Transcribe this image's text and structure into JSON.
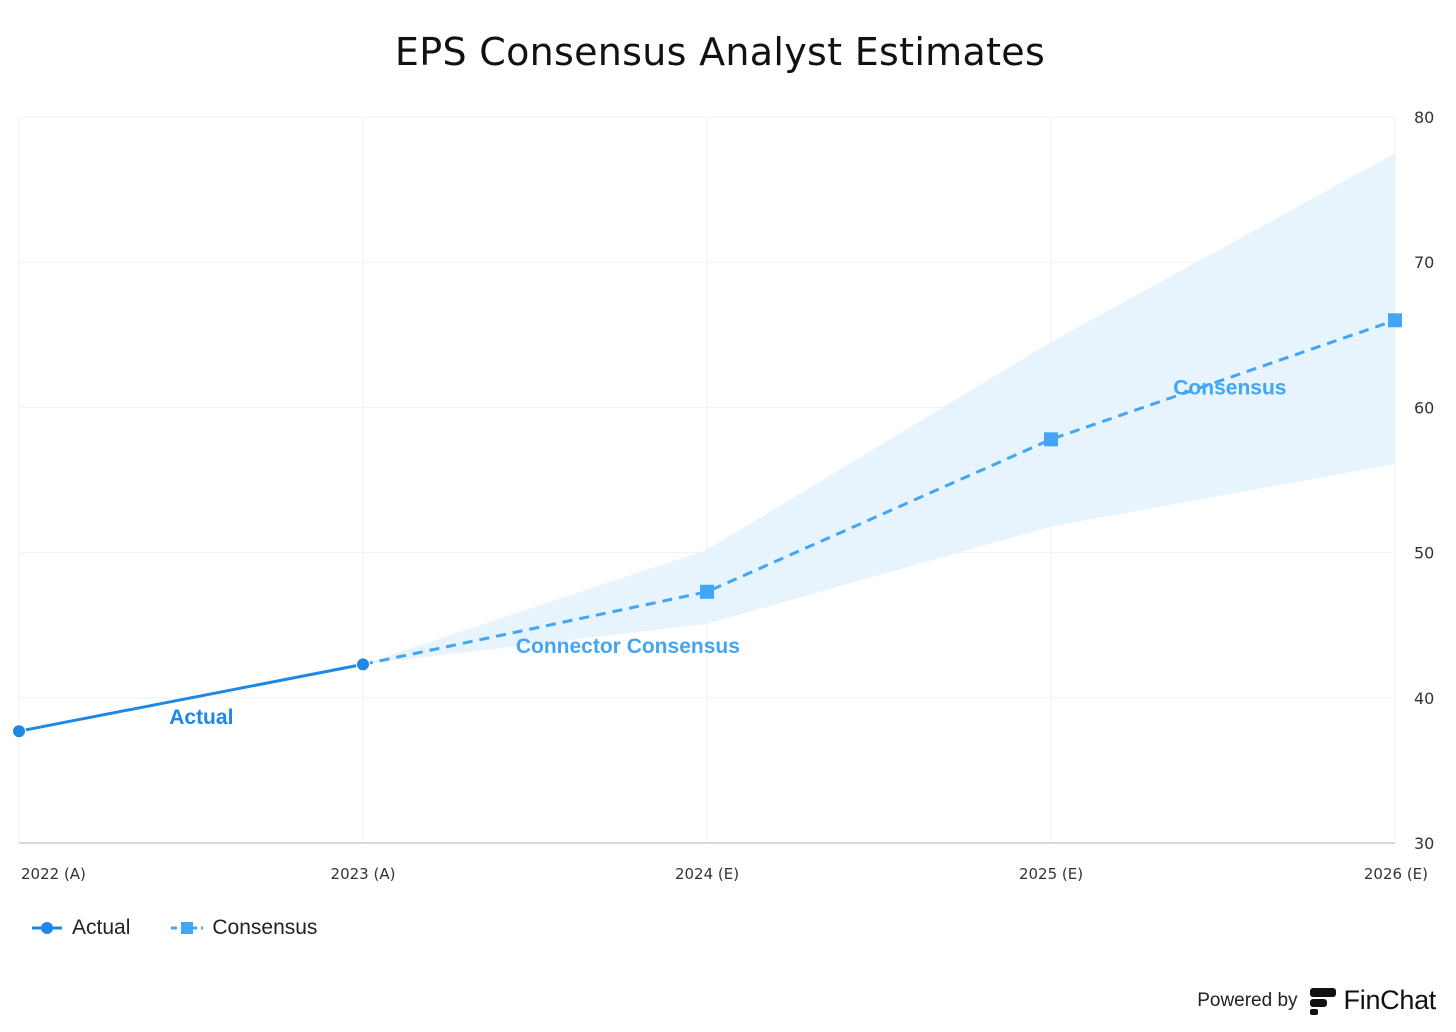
{
  "chart_data": {
    "type": "line",
    "title": "EPS Consensus Analyst Estimates",
    "categories": [
      "2022 (A)",
      "2023 (A)",
      "2024 (E)",
      "2025 (E)",
      "2026 (E)"
    ],
    "ylim": [
      30,
      80
    ],
    "yticks": [
      30,
      40,
      50,
      60,
      70,
      80
    ],
    "y_axis_position": "right",
    "grid": true,
    "legend_position": "bottom-left",
    "series": [
      {
        "name": "Actual",
        "style": "solid",
        "marker": "circle",
        "color": "#1E88E5",
        "x": [
          "2022 (A)",
          "2023 (A)"
        ],
        "values": [
          37.7,
          42.3
        ]
      },
      {
        "name": "Consensus",
        "style": "dashed",
        "marker": "square",
        "color": "#42A5F5",
        "x": [
          "2023 (A)",
          "2024 (E)",
          "2025 (E)",
          "2026 (E)"
        ],
        "values": [
          42.3,
          47.3,
          57.8,
          66.0
        ]
      }
    ],
    "range_band": {
      "color": "#E3F2FD",
      "x": [
        "2023 (A)",
        "2024 (E)",
        "2025 (E)",
        "2026 (E)"
      ],
      "low": [
        42.3,
        45.1,
        51.8,
        56.1
      ],
      "high": [
        42.3,
        50.2,
        64.5,
        77.5
      ]
    },
    "annotations": [
      {
        "text": "Actual",
        "x": "2022 (A)",
        "x_offset": 0.53,
        "y": 38.2,
        "color": "#1E88E5"
      },
      {
        "text": "Connector Consensus",
        "x": "2023 (A)",
        "x_offset": 0.77,
        "y": 43.1,
        "color": "#42A5F5"
      },
      {
        "text": "Consensus",
        "x": "2025 (E)",
        "x_offset": 0.52,
        "y": 60.9,
        "color": "#42A5F5"
      }
    ]
  },
  "legend": {
    "items": [
      {
        "label": "Actual",
        "color": "#1E88E5",
        "style": "solid",
        "marker": "circle"
      },
      {
        "label": "Consensus",
        "color": "#42A5F5",
        "style": "dashed",
        "marker": "square"
      }
    ]
  },
  "footer": {
    "powered_by": "Powered by",
    "brand": "FinChat",
    "brand_icon": "finchat-logo-icon"
  }
}
